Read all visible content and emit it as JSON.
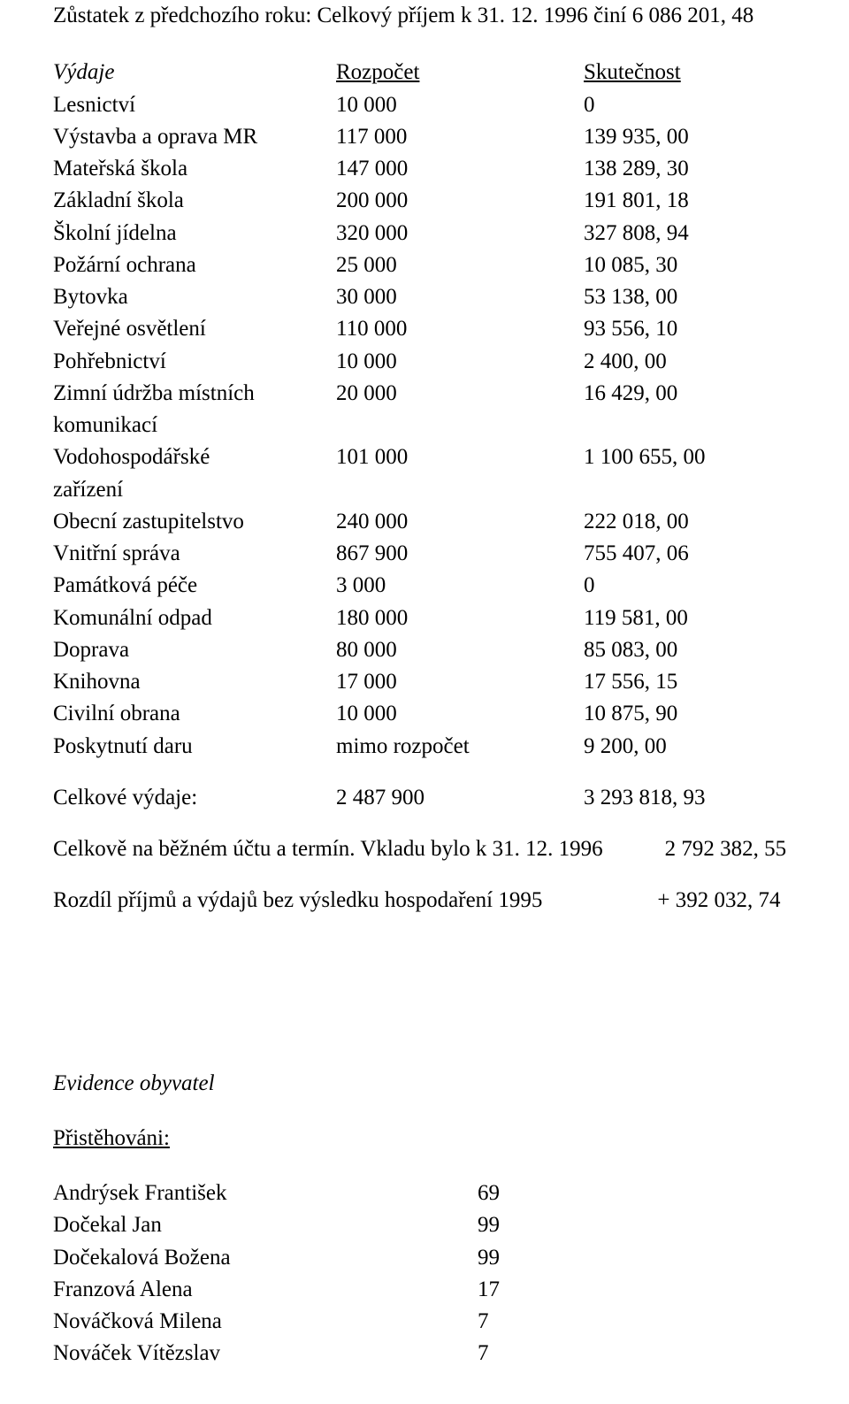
{
  "top": {
    "text": "Zůstatek z předchozího roku: Celkový příjem k 31. 12. 1996  činí  6 086 201, 48"
  },
  "headers": {
    "left": "Výdaje",
    "budget": "Rozpočet",
    "actual": "Skutečnost"
  },
  "items": [
    {
      "label": "Lesnictví",
      "budget": "10 000",
      "actual": "0"
    },
    {
      "label": "Výstavba a oprava MR",
      "budget": "117 000",
      "actual": "139 935, 00"
    },
    {
      "label": "Mateřská škola",
      "budget": "147 000",
      "actual": "138 289, 30"
    },
    {
      "label": "Základní škola",
      "budget": "200 000",
      "actual": "191 801, 18"
    },
    {
      "label": "Školní jídelna",
      "budget": "320 000",
      "actual": "327 808, 94"
    },
    {
      "label": "Požární ochrana",
      "budget": "25 000",
      "actual": "10 085, 30"
    },
    {
      "label": "Bytovka",
      "budget": "30 000",
      "actual": "53 138, 00"
    },
    {
      "label": "Veřejné osvětlení",
      "budget": "110 000",
      "actual": "93 556, 10"
    },
    {
      "label": "Pohřebnictví",
      "budget": "10 000",
      "actual": "2 400, 00"
    },
    {
      "label": "Zimní údržba místních",
      "budget": "20 000",
      "actual": "16 429, 00"
    },
    {
      "label": "komunikací",
      "budget": "",
      "actual": ""
    },
    {
      "label": "Vodohospodářské",
      "budget": "101 000",
      "actual": "1 100 655, 00"
    },
    {
      "label": "zařízení",
      "budget": "",
      "actual": ""
    },
    {
      "label": "Obecní zastupitelstvo",
      "budget": "240 000",
      "actual": "222 018, 00"
    },
    {
      "label": "Vnitřní správa",
      "budget": "867 900",
      "actual": "755 407, 06"
    },
    {
      "label": "Památková péče",
      "budget": "3 000",
      "actual": "0"
    },
    {
      "label": "Komunální odpad",
      "budget": "180 000",
      "actual": "119 581, 00"
    },
    {
      "label": "Doprava",
      "budget": "80 000",
      "actual": "85 083, 00"
    },
    {
      "label": "Knihovna",
      "budget": "17 000",
      "actual": "17 556, 15"
    },
    {
      "label": "Civilní obrana",
      "budget": "10 000",
      "actual": "10 875, 90"
    },
    {
      "label": "Poskytnutí daru",
      "budget": "mimo rozpočet",
      "actual": "9 200, 00"
    }
  ],
  "totals": {
    "label": "Celkové výdaje:",
    "budget": "2 487 900",
    "actual": "3 293 818, 93"
  },
  "line1": {
    "text": "Celkově na běžném účtu a termín. Vkladu bylo k 31. 12. 1996",
    "value": "2 792 382, 55"
  },
  "line2": {
    "text": "Rozdíl příjmů a výdajů bez výsledku hospodaření 1995",
    "value": "+ 392 032, 74"
  },
  "evidence": {
    "title": "Evidence obyvatel",
    "sub": "Přistěhováni:"
  },
  "people": [
    {
      "name": "Andrýsek František",
      "num": "69"
    },
    {
      "name": "Dočekal Jan",
      "num": "99"
    },
    {
      "name": "Dočekalová Božena",
      "num": "99"
    },
    {
      "name": "Franzová Alena",
      "num": "17"
    },
    {
      "name": "Nováčková Milena",
      "num": "7"
    },
    {
      "name": "Nováček Vítězslav",
      "num": "7"
    }
  ]
}
